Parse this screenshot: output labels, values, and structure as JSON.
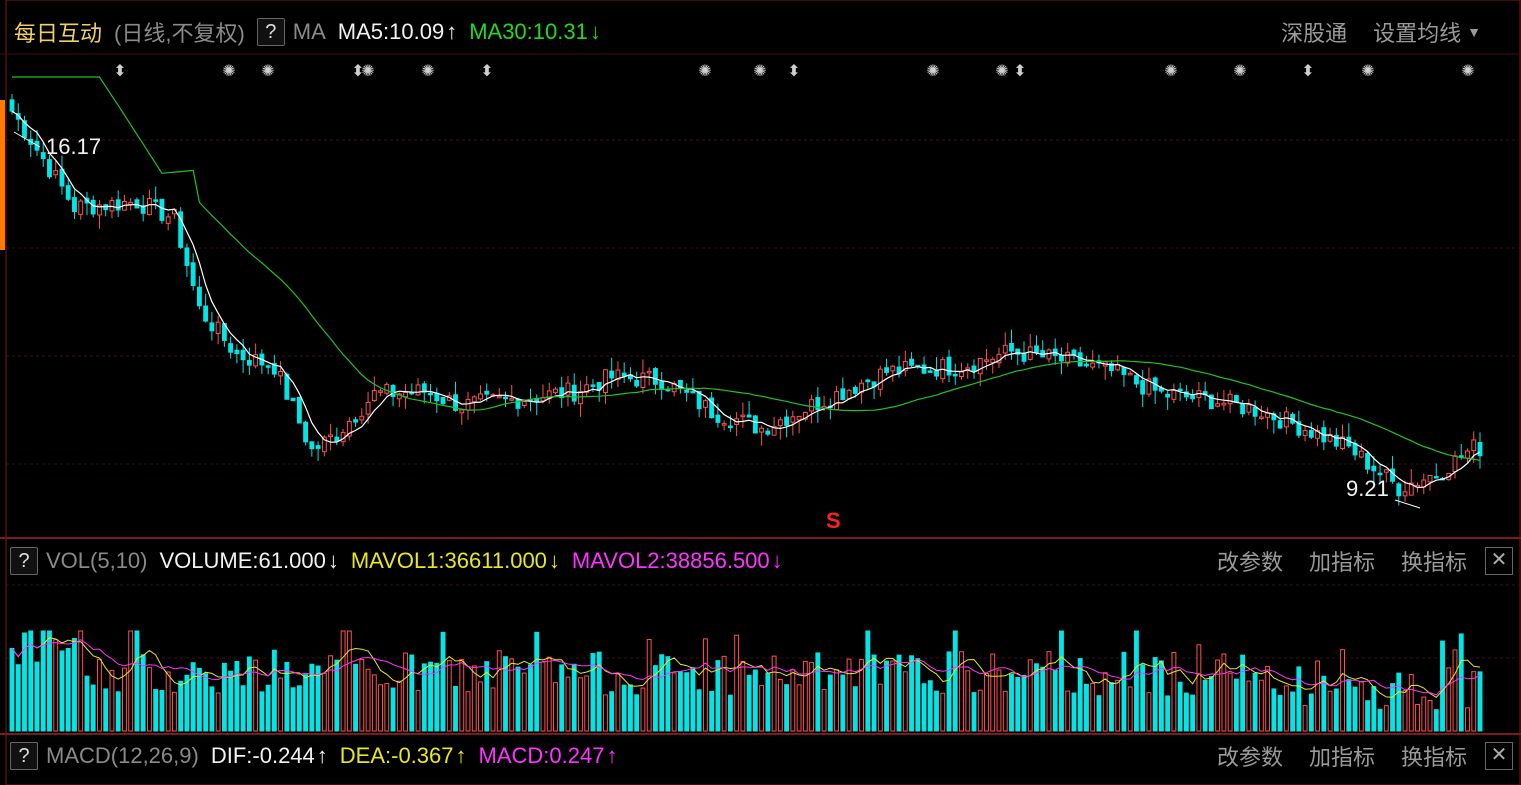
{
  "main_header": {
    "title": "每日互动",
    "period": "(日线,不复权)",
    "help": "?",
    "ma_label": "MA",
    "ma5": "MA5:10.09",
    "ma5_arrow": "↑",
    "ma30": "MA30:10.31",
    "ma30_arrow": "↓",
    "tool1": "深股通",
    "tool2": "设置均线"
  },
  "price_labels": {
    "high": "16.17",
    "low": "9.21"
  },
  "marker_s": "S",
  "vol_header": {
    "help": "?",
    "name": "VOL(5,10)",
    "volume": "VOLUME:61.000",
    "volume_arrow": "↓",
    "mavol1": "MAVOL1:36611.000",
    "mavol1_arrow": "↓",
    "mavol2": "MAVOL2:38856.500",
    "mavol2_arrow": "↓"
  },
  "macd_header": {
    "help": "?",
    "name": "MACD(12,26,9)",
    "dif": "DIF:-0.244",
    "dif_arrow": "↑",
    "dea": "DEA:-0.367",
    "dea_arrow": "↑",
    "macd": "MACD:0.247",
    "macd_arrow": "↑"
  },
  "panel_tools": {
    "change_params": "改参数",
    "add_indicator": "加指标",
    "switch_indicator": "换指标",
    "close": "✕"
  },
  "colors": {
    "up": "#ff5050",
    "down": "#00e5e5",
    "ma5": "#ffffff",
    "ma30": "#22c022",
    "mavol1": "#e8e820",
    "mavol2": "#ff33ff",
    "grid": "#3a1010"
  },
  "chart_data": {
    "type": "candlestick",
    "price_range": [
      8.5,
      16.8
    ],
    "high_marker": 16.17,
    "low_marker": 9.21,
    "ma5_last": 10.09,
    "ma30_last": 10.31,
    "volume_last": 61.0,
    "mavol1_last": 36611.0,
    "mavol2_last": 38856.5,
    "dif": -0.244,
    "dea": -0.367,
    "macd": 0.247
  }
}
